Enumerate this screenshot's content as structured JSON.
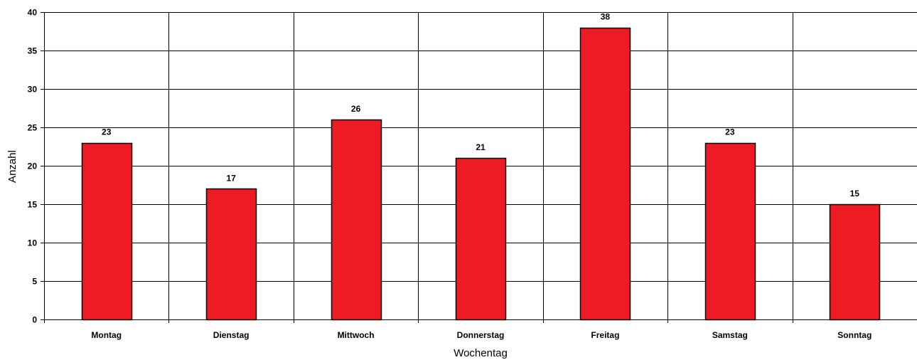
{
  "chart_data": {
    "type": "bar",
    "title": "",
    "xlabel": "Wochentag",
    "ylabel": "Anzahl",
    "categories": [
      "Montag",
      "Dienstag",
      "Mittwoch",
      "Donnerstag",
      "Freitag",
      "Samstag",
      "Sonntag"
    ],
    "values": [
      23,
      17,
      26,
      21,
      38,
      23,
      15
    ],
    "ylim": [
      0,
      40
    ],
    "ytick_step": 5,
    "grid": true,
    "data_labels": true,
    "legend": "none",
    "bar_color": "#ED1C24",
    "bar_border_color": "#000000"
  }
}
